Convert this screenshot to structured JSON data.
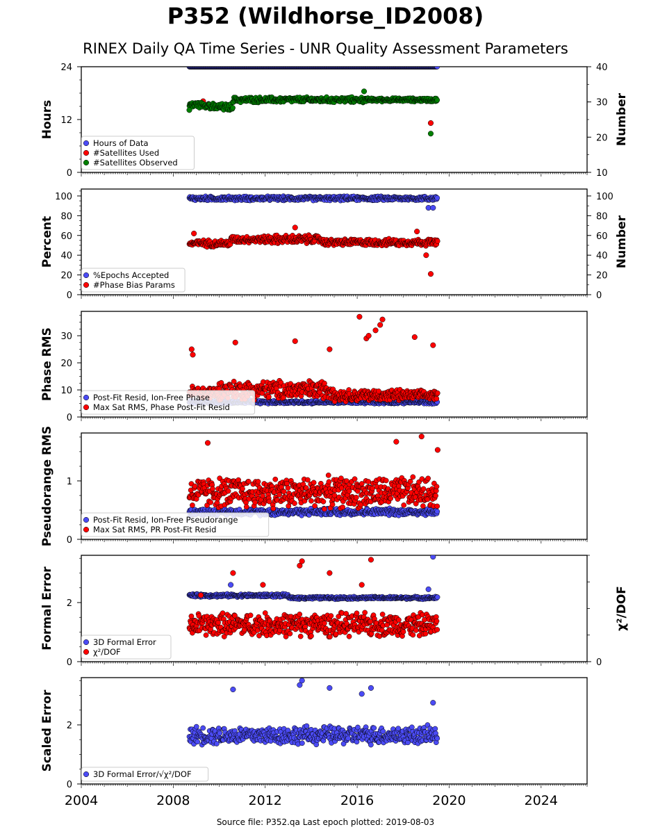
{
  "title": "P352 (Wildhorse_ID2008)",
  "subtitle": "RINEX Daily QA Time Series - UNR Quality Assessment Parameters",
  "footer": "Source file: P352.qa Last epoch plotted: 2019-08-03",
  "colors": {
    "blue": "#4b4bf5",
    "red": "#ff0000",
    "green": "#008000",
    "edge": "#000000"
  },
  "chart_data": [
    {
      "type": "scatter",
      "ylabel": "Hours",
      "right_ylabel": "Number",
      "xlim": [
        2004,
        2026
      ],
      "ylim": [
        0,
        24
      ],
      "yticks": [
        0,
        12,
        24
      ],
      "right_ylim": [
        10,
        40
      ],
      "right_yticks": [
        10,
        20,
        30,
        40
      ],
      "series": [
        {
          "name": "Hours of Data",
          "color": "blue",
          "axis": "left",
          "segments": [
            [
              2008.7,
              2019.5,
              24,
              0
            ]
          ],
          "outliers": []
        },
        {
          "name": "#Satellites Used",
          "color": "red",
          "axis": "right",
          "segments": [],
          "outliers": [
            [
              2009.3,
              30.2
            ],
            [
              2019.2,
              24
            ]
          ]
        },
        {
          "name": "#Satellites Observed",
          "color": "green",
          "axis": "right",
          "segments": [
            [
              2008.7,
              2009.6,
              29.2,
              1.0
            ],
            [
              2009.6,
              2010.6,
              28.5,
              1.2
            ],
            [
              2010.6,
              2016.4,
              30.6,
              0.9
            ],
            [
              2016.4,
              2019.5,
              30.6,
              0.6
            ]
          ],
          "outliers": [
            [
              2008.7,
              27.7
            ],
            [
              2016.3,
              33.0
            ],
            [
              2019.2,
              21.0
            ]
          ]
        }
      ],
      "legend_position": "lower-left"
    },
    {
      "type": "scatter",
      "ylabel": "Percent",
      "right_ylabel": "Number",
      "xlim": [
        2004,
        2026
      ],
      "ylim": [
        0,
        107
      ],
      "yticks": [
        0,
        20,
        40,
        60,
        80,
        100
      ],
      "right_ylim": [
        0,
        107
      ],
      "right_yticks": [
        0,
        20,
        40,
        60,
        80,
        100
      ],
      "series": [
        {
          "name": "%Epochs Accepted",
          "color": "blue",
          "axis": "left",
          "segments": [
            [
              2008.7,
              2019.5,
              97.5,
              2.5
            ]
          ],
          "outliers": [
            [
              2019.1,
              88
            ],
            [
              2019.3,
              88
            ]
          ]
        },
        {
          "name": "#Phase Bias Params",
          "color": "red",
          "axis": "right",
          "segments": [
            [
              2008.7,
              2010.5,
              52,
              4
            ],
            [
              2010.5,
              2012.0,
              56,
              4
            ],
            [
              2012.0,
              2014.5,
              56,
              5
            ],
            [
              2014.5,
              2019.5,
              53,
              4
            ]
          ],
          "outliers": [
            [
              2008.9,
              62
            ],
            [
              2013.3,
              68
            ],
            [
              2018.6,
              64
            ],
            [
              2019.0,
              40
            ],
            [
              2019.2,
              21
            ]
          ]
        }
      ],
      "legend_position": "lower-left"
    },
    {
      "type": "scatter",
      "ylabel": "Phase RMS",
      "xlim": [
        2004,
        2026
      ],
      "ylim": [
        0,
        39
      ],
      "yticks": [
        0,
        10,
        20,
        30
      ],
      "series": [
        {
          "name": "Post-Fit Resid, Ion-Free Phase",
          "color": "blue",
          "axis": "left",
          "segments": [
            [
              2008.7,
              2019.5,
              5.5,
              0.7
            ]
          ],
          "outliers": []
        },
        {
          "name": "Max Sat RMS, Phase Post-Fit Resid",
          "color": "red",
          "axis": "left",
          "segments": [
            [
              2008.7,
              2010.0,
              9,
              3
            ],
            [
              2010.0,
              2015.0,
              10,
              4
            ],
            [
              2015.0,
              2018.0,
              8,
              2.5
            ],
            [
              2018.0,
              2019.5,
              8,
              2
            ]
          ],
          "outliers": [
            [
              2008.8,
              25
            ],
            [
              2008.85,
              23
            ],
            [
              2010.7,
              27.5
            ],
            [
              2013.3,
              28
            ],
            [
              2014.8,
              25
            ],
            [
              2016.1,
              37
            ],
            [
              2016.4,
              29
            ],
            [
              2016.5,
              30
            ],
            [
              2016.8,
              32
            ],
            [
              2017.0,
              34
            ],
            [
              2017.1,
              36
            ],
            [
              2018.5,
              29.5
            ],
            [
              2019.3,
              26.5
            ]
          ]
        }
      ],
      "legend_position": "lower-left"
    },
    {
      "type": "scatter",
      "ylabel": "Pseudorange RMS",
      "xlim": [
        2004,
        2026
      ],
      "ylim": [
        0,
        1.82
      ],
      "yticks": [
        0,
        1
      ],
      "series": [
        {
          "name": "Post-Fit Resid, Ion-Free Pseudorange",
          "color": "blue",
          "axis": "left",
          "segments": [
            [
              2008.7,
              2019.5,
              0.47,
              0.07
            ]
          ],
          "outliers": []
        },
        {
          "name": "Max Sat RMS, PR Post-Fit Resid",
          "color": "red",
          "axis": "left",
          "segments": [
            [
              2008.7,
              2019.5,
              0.8,
              0.3
            ]
          ],
          "outliers": [
            [
              2009.5,
              1.65
            ],
            [
              2017.7,
              1.67
            ],
            [
              2018.8,
              1.76
            ],
            [
              2019.5,
              1.53
            ]
          ]
        }
      ],
      "legend_position": "lower-left"
    },
    {
      "type": "scatter",
      "ylabel": "Formal Error",
      "right_ylabel": "χ²/DOF",
      "xlim": [
        2004,
        2026
      ],
      "ylim": [
        0,
        3.6
      ],
      "yticks": [
        0,
        2
      ],
      "right_yticks": [
        0
      ],
      "series": [
        {
          "name": "3D Formal Error",
          "color": "blue",
          "axis": "left",
          "segments": [
            [
              2008.7,
              2013.0,
              2.24,
              0.06
            ],
            [
              2013.0,
              2019.5,
              2.16,
              0.05
            ]
          ],
          "outliers": [
            [
              2010.5,
              2.6
            ],
            [
              2019.3,
              3.55
            ],
            [
              2019.1,
              2.45
            ]
          ]
        },
        {
          "name": "χ²/DOF",
          "color": "red",
          "axis": "left",
          "segments": [
            [
              2008.7,
              2019.5,
              1.25,
              0.45
            ]
          ],
          "outliers": [
            [
              2010.6,
              3.0
            ],
            [
              2011.9,
              2.6
            ],
            [
              2013.5,
              3.25
            ],
            [
              2013.6,
              3.4
            ],
            [
              2014.8,
              3.0
            ],
            [
              2016.6,
              3.45
            ],
            [
              2016.2,
              2.6
            ],
            [
              2009.2,
              2.25
            ]
          ]
        }
      ],
      "legend_position": "lower-left"
    },
    {
      "type": "scatter",
      "ylabel": "Scaled Error",
      "xlim": [
        2004,
        2026
      ],
      "ylim": [
        0,
        3.6
      ],
      "yticks": [
        0,
        2
      ],
      "xticks": [
        2004,
        2008,
        2012,
        2016,
        2020,
        2024
      ],
      "series": [
        {
          "name": "3D Formal Error/√χ²/DOF",
          "color": "blue",
          "axis": "left",
          "segments": [
            [
              2008.7,
              2019.5,
              1.65,
              0.35
            ]
          ],
          "outliers": [
            [
              2010.6,
              3.2
            ],
            [
              2013.5,
              3.35
            ],
            [
              2013.6,
              3.5
            ],
            [
              2014.8,
              3.25
            ],
            [
              2016.2,
              3.05
            ],
            [
              2016.6,
              3.25
            ],
            [
              2019.3,
              2.75
            ]
          ]
        }
      ],
      "legend_position": "lower-left"
    }
  ]
}
